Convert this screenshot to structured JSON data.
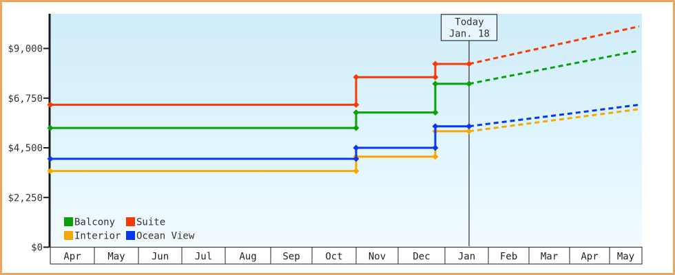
{
  "page": {
    "border_color": "#eaa65c",
    "plot_background_top": "#d0edfa",
    "plot_background_mid": "#e0f5fc",
    "plot_background_bottom": "#f2fbfe"
  },
  "chart_data": {
    "type": "line",
    "description": "Cruise cabin price history by category (solid step lines) with dashed future price projections after today",
    "y_axis": {
      "ticks": [
        {
          "value": 0,
          "label": "$0"
        },
        {
          "value": 2250,
          "label": "$2,250"
        },
        {
          "value": 4500,
          "label": "$4,500"
        },
        {
          "value": 6750,
          "label": "$6,750"
        },
        {
          "value": 9000,
          "label": "$9,000"
        }
      ],
      "range": [
        0,
        10500
      ],
      "grid": "off"
    },
    "x_axis": {
      "months": [
        "Apr",
        "May",
        "Jun",
        "Jul",
        "Aug",
        "Sep",
        "Oct",
        "Nov",
        "Dec",
        "Jan",
        "Feb",
        "Mar",
        "Apr",
        "May"
      ]
    },
    "today": {
      "title": "Today",
      "date": "Jan. 18",
      "month_t": 9.5556
    },
    "series": [
      {
        "name": "Interior",
        "color": "#f7a800",
        "history": [
          {
            "month_t": 0,
            "price": 3450
          },
          {
            "month_t": 7,
            "price": 3450
          },
          {
            "month_t": 7,
            "price": 4100
          },
          {
            "month_t": 8.794,
            "price": 4100
          },
          {
            "month_t": 8.794,
            "price": 5250
          },
          {
            "month_t": 9.5556,
            "price": 5250
          }
        ],
        "projection": {
          "month_t": 13.915,
          "price": 6250
        }
      },
      {
        "name": "Ocean View",
        "color": "#0936f1",
        "history": [
          {
            "month_t": 0,
            "price": 4000
          },
          {
            "month_t": 7,
            "price": 4000
          },
          {
            "month_t": 7,
            "price": 4500
          },
          {
            "month_t": 8.794,
            "price": 4500
          },
          {
            "month_t": 8.794,
            "price": 5475
          },
          {
            "month_t": 9.5556,
            "price": 5475
          }
        ],
        "projection": {
          "month_t": 13.915,
          "price": 6450
        }
      },
      {
        "name": "Balcony",
        "color": "#0aa00a",
        "history": [
          {
            "month_t": 0,
            "price": 5400
          },
          {
            "month_t": 7,
            "price": 5400
          },
          {
            "month_t": 7,
            "price": 6100
          },
          {
            "month_t": 8.794,
            "price": 6100
          },
          {
            "month_t": 8.794,
            "price": 7400
          },
          {
            "month_t": 9.5556,
            "price": 7400
          }
        ],
        "projection": {
          "month_t": 13.915,
          "price": 8900
        }
      },
      {
        "name": "Suite",
        "color": "#f93a06",
        "history": [
          {
            "month_t": 0,
            "price": 6450
          },
          {
            "month_t": 7,
            "price": 6450
          },
          {
            "month_t": 7,
            "price": 7700
          },
          {
            "month_t": 8.794,
            "price": 7700
          },
          {
            "month_t": 8.794,
            "price": 8300
          },
          {
            "month_t": 9.5556,
            "price": 8300
          }
        ],
        "projection": {
          "month_t": 13.915,
          "price": 10000
        }
      }
    ],
    "legend": {
      "position": "bottom-left",
      "items": [
        {
          "label": "Balcony",
          "color": "#0aa00a"
        },
        {
          "label": "Suite",
          "color": "#f93a06"
        },
        {
          "label": "Interior",
          "color": "#f7a800"
        },
        {
          "label": "Ocean View",
          "color": "#0936f1"
        }
      ]
    }
  }
}
